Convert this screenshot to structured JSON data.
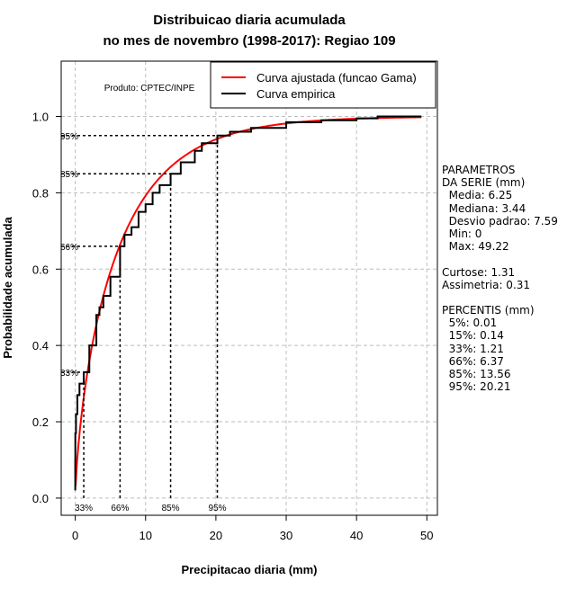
{
  "chart_data": {
    "type": "line",
    "title": [
      "Distribuicao diaria acumulada",
      "no mes de novembro (1998-2017): Regiao 109"
    ],
    "xlabel": "Precipitacao diaria (mm)",
    "ylabel": "Probabilidade acumulada",
    "xlim": [
      -2,
      51.5
    ],
    "ylim": [
      -0.045,
      1.145
    ],
    "xticks": [
      0,
      10,
      20,
      30,
      40,
      50
    ],
    "yticks": [
      0.0,
      0.2,
      0.4,
      0.6,
      0.8,
      1.0
    ],
    "ytick_labels": [
      "0.0",
      "0.2",
      "0.4",
      "0.6",
      "0.8",
      "1.0"
    ],
    "grid": true,
    "legend_position": "top-right",
    "product_label": "Produto: CPTEC/INPE",
    "series": [
      {
        "name": "Curva ajustada (funcao Gama)",
        "color": "#ff0000",
        "kind": "gamma_cdf",
        "shape": 0.68,
        "scale": 9.2,
        "xmax": 49.22
      },
      {
        "name": "Curva empirica",
        "color": "#000000",
        "kind": "step",
        "x": [
          0,
          0,
          0.01,
          0.1,
          0.3,
          0.6,
          1.21,
          2,
          3,
          3.44,
          4,
          5,
          6.37,
          7,
          8,
          9,
          10,
          11,
          12,
          13.56,
          15,
          17,
          18,
          20.21,
          22,
          25,
          30,
          35,
          40,
          43,
          49.22
        ],
        "y": [
          0.02,
          0.1,
          0.17,
          0.22,
          0.27,
          0.3,
          0.33,
          0.4,
          0.48,
          0.5,
          0.53,
          0.58,
          0.66,
          0.69,
          0.71,
          0.75,
          0.77,
          0.8,
          0.82,
          0.85,
          0.88,
          0.91,
          0.93,
          0.95,
          0.96,
          0.97,
          0.985,
          0.99,
          0.995,
          1.0,
          1.0
        ]
      }
    ],
    "percentiles": [
      {
        "label": "33%",
        "x": 1.21,
        "p": 0.33
      },
      {
        "label": "66%",
        "x": 6.37,
        "p": 0.66
      },
      {
        "label": "85%",
        "x": 13.56,
        "p": 0.85
      },
      {
        "label": "95%",
        "x": 20.21,
        "p": 0.95
      }
    ]
  },
  "side_panel": [
    "PARAMETROS",
    "DA SERIE (mm)",
    "  Media: 6.25",
    "  Mediana: 3.44",
    "  Desvio padrao: 7.59",
    "  Min: 0",
    "  Max: 49.22",
    "",
    "Curtose: 1.31",
    "Assimetria: 0.31",
    "",
    "PERCENTIS (mm)",
    "  5%: 0.01",
    "  15%: 0.14",
    "  33%: 1.21",
    "  66%: 6.37",
    "  85%: 13.56",
    "  95%: 20.21"
  ]
}
